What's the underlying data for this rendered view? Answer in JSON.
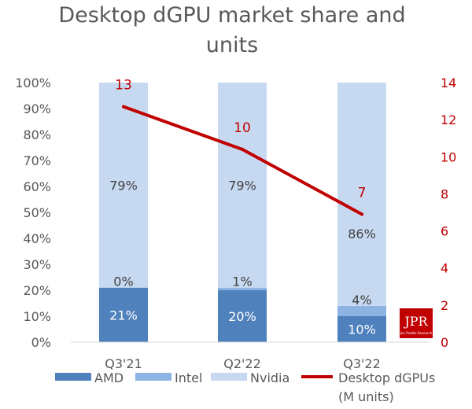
{
  "chart_data": {
    "type": "bar",
    "stacked": true,
    "title": "Desktop dGPU market share and units",
    "title_lines": [
      "Desktop dGPU market share and",
      "units"
    ],
    "categories": [
      "Q3'21",
      "Q2'22",
      "Q3'22"
    ],
    "series": [
      {
        "name": "AMD",
        "values": [
          21,
          20,
          10
        ],
        "labels": [
          "21%",
          "20%",
          "10%"
        ],
        "color": "#4f81bd"
      },
      {
        "name": "Intel",
        "values": [
          0,
          1,
          4
        ],
        "labels": [
          "0%",
          "1%",
          "4%"
        ],
        "color": "#8db3e2"
      },
      {
        "name": "Nvidia",
        "values": [
          79,
          79,
          86
        ],
        "labels": [
          "79%",
          "79%",
          "86%"
        ],
        "color": "#c6d9f1"
      }
    ],
    "line_series": {
      "name": "Desktop dGPUs (M units)",
      "legend_lines": [
        "Desktop dGPUs",
        "(M units)"
      ],
      "values": [
        12.7,
        10.4,
        6.9
      ],
      "labels": [
        "13",
        "10",
        "7"
      ],
      "color": "#c00000",
      "axis": "right"
    },
    "y_left": {
      "ticks": [
        "0%",
        "10%",
        "20%",
        "30%",
        "40%",
        "50%",
        "60%",
        "70%",
        "80%",
        "90%",
        "100%"
      ],
      "ylim": [
        0,
        100
      ]
    },
    "y_right": {
      "ticks": [
        "0",
        "2",
        "4",
        "6",
        "8",
        "10",
        "12",
        "14"
      ],
      "ylim": [
        0,
        14
      ]
    },
    "grid": false,
    "legend_position": "bottom"
  },
  "logo": {
    "text": "JPR",
    "subtext": "Jon Peddie Research"
  }
}
